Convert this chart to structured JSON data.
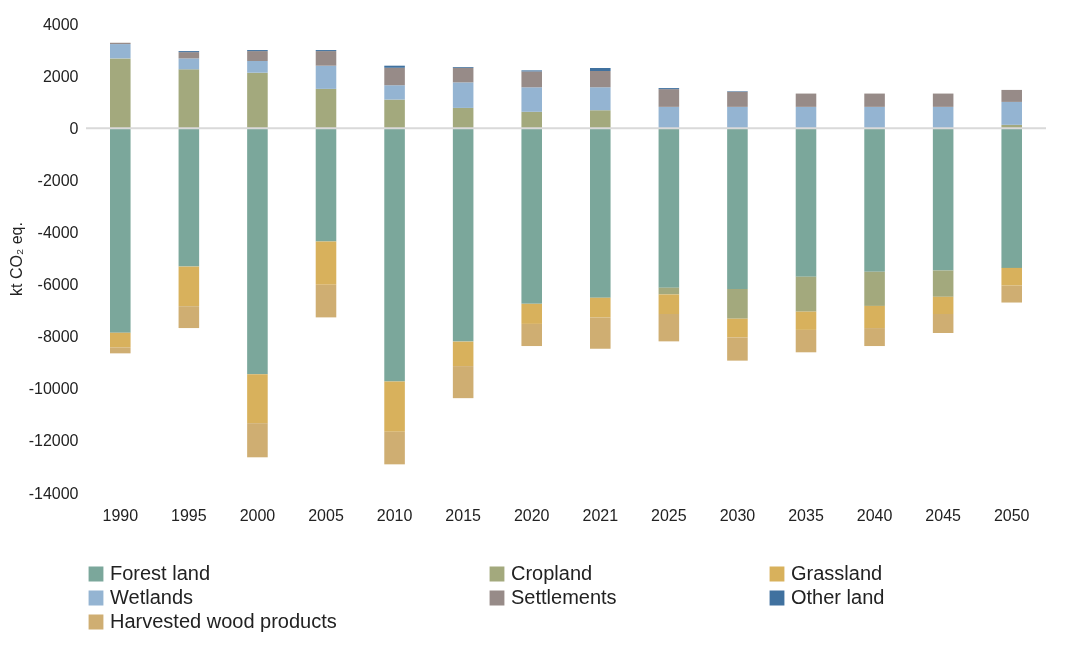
{
  "chart_data": {
    "type": "bar",
    "stacked": true,
    "ylabel": "kt CO₂ eq.",
    "categories": [
      "1990",
      "1995",
      "2000",
      "2005",
      "2010",
      "2015",
      "2020",
      "2021",
      "2025",
      "2030",
      "2035",
      "2040",
      "2045",
      "2050"
    ],
    "ylim": [
      -14000,
      4000
    ],
    "yticks": [
      -14000,
      -12000,
      -10000,
      -8000,
      -6000,
      -4000,
      -2000,
      0,
      2000,
      4000
    ],
    "legend": "bottom",
    "grid": false,
    "ref_lines": [
      {
        "axis": "y",
        "value": 0,
        "color": "#d9d9d9"
      }
    ],
    "series": [
      {
        "name": "Forest land",
        "color": "#7ba79b",
        "values": [
          -7850,
          -5310,
          -9440,
          -4350,
          -9720,
          -8190,
          -6740,
          -6510,
          -6120,
          -6170,
          -5700,
          -5510,
          -5460,
          -5360
        ]
      },
      {
        "name": "Cropland",
        "color": "#a3a97d",
        "values": [
          2680,
          2260,
          2130,
          1510,
          1100,
          780,
          630,
          690,
          -260,
          -1140,
          -1340,
          -1310,
          -1010,
          130
        ]
      },
      {
        "name": "Grassland",
        "color": "#d8b15c",
        "values": [
          -570,
          -1520,
          -1880,
          -1660,
          -1930,
          -940,
          -770,
          -750,
          -750,
          -720,
          -700,
          -850,
          -660,
          -680
        ]
      },
      {
        "name": "Wetlands",
        "color": "#94b4d2",
        "values": [
          550,
          420,
          450,
          890,
          550,
          980,
          940,
          880,
          820,
          820,
          820,
          820,
          820,
          880
        ]
      },
      {
        "name": "Settlements",
        "color": "#978b88",
        "values": [
          50,
          240,
          380,
          560,
          670,
          560,
          610,
          630,
          680,
          580,
          510,
          510,
          510,
          460
        ]
      },
      {
        "name": "Other land",
        "color": "#40719f",
        "values": [
          0,
          40,
          40,
          40,
          80,
          30,
          40,
          110,
          40,
          20,
          0,
          0,
          0,
          0
        ]
      },
      {
        "name": "Harvested wood products",
        "color": "#cfae72",
        "values": [
          -220,
          -840,
          -1310,
          -1250,
          -1250,
          -1230,
          -850,
          -1200,
          -1050,
          -890,
          -860,
          -690,
          -730,
          -650
        ]
      }
    ]
  }
}
